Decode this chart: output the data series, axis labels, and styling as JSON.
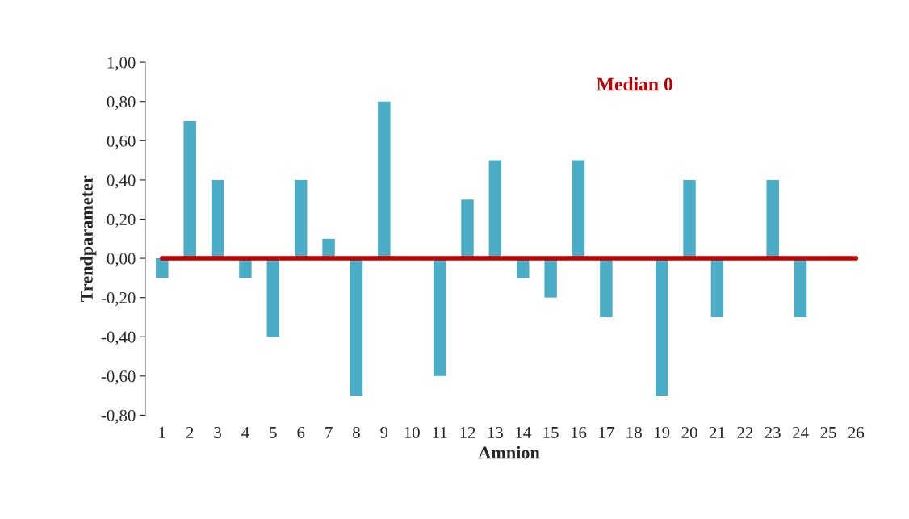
{
  "chart_data": {
    "type": "bar",
    "xlabel": "Amnion",
    "ylabel": "Trendparameter",
    "categories": [
      "1",
      "2",
      "3",
      "4",
      "5",
      "6",
      "7",
      "8",
      "9",
      "10",
      "11",
      "12",
      "13",
      "14",
      "15",
      "16",
      "17",
      "18",
      "19",
      "20",
      "21",
      "22",
      "23",
      "24",
      "25",
      "26"
    ],
    "series": [
      {
        "color": "#4bacc6",
        "values": [
          -0.1,
          0.7,
          0.4,
          -0.1,
          -0.4,
          0.4,
          0.1,
          -0.7,
          0.8,
          0,
          -0.6,
          0.3,
          0.5,
          -0.1,
          -0.2,
          0.5,
          -0.3,
          0,
          -0.7,
          0.4,
          -0.3,
          0,
          0.4,
          -0.3,
          0,
          0
        ]
      }
    ],
    "ylim": [
      -0.8,
      1.0
    ],
    "yticks": [
      {
        "value": -0.8,
        "label": "-0,80"
      },
      {
        "value": -0.6,
        "label": "-0,60"
      },
      {
        "value": -0.4,
        "label": "-0,40"
      },
      {
        "value": -0.2,
        "label": "-0,20"
      },
      {
        "value": 0,
        "label": "0,00"
      },
      {
        "value": 0.2,
        "label": "0,20"
      },
      {
        "value": 0.4,
        "label": "0,40"
      },
      {
        "value": 0.6,
        "label": "0,60"
      },
      {
        "value": 0.8,
        "label": "0,80"
      },
      {
        "value": 1.0,
        "label": "1,00"
      }
    ],
    "ref_lines": [
      {
        "axis": "y",
        "value": 0,
        "label": "Median 0",
        "color": "#c00000"
      }
    ],
    "grid": false,
    "legend": false
  }
}
